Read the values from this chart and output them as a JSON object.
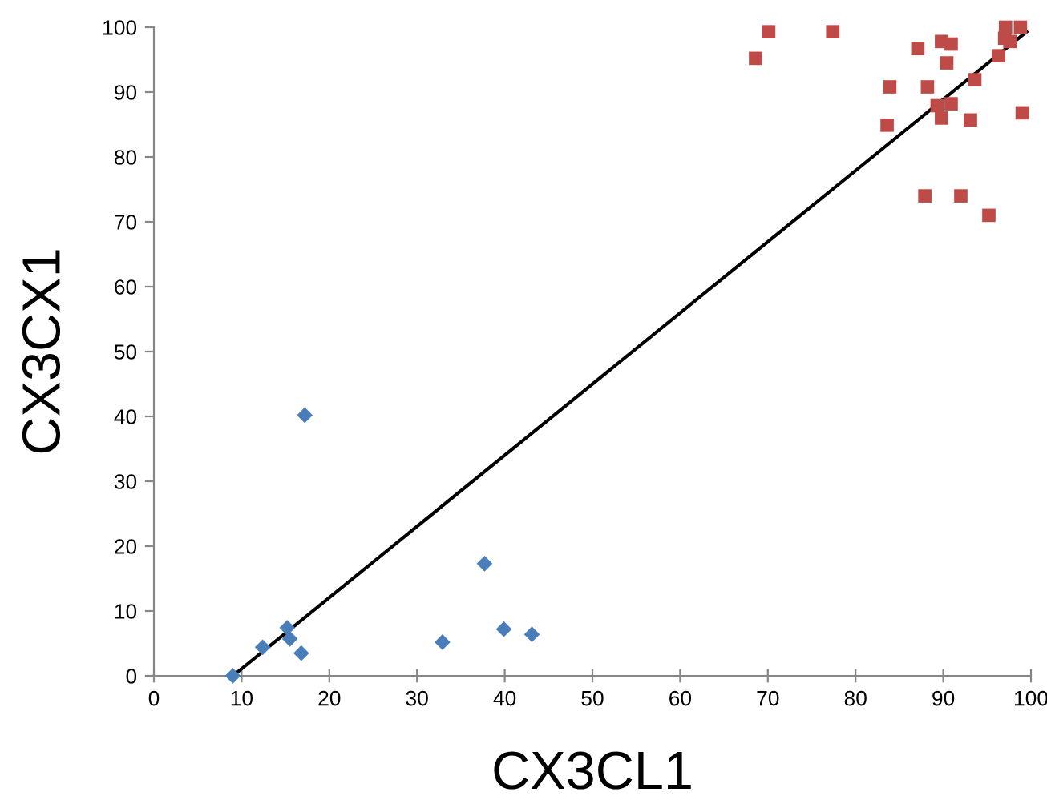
{
  "chart_data": {
    "type": "scatter",
    "xlabel": "CX3CL1",
    "ylabel": "CX3CX1",
    "xlim": [
      0,
      100
    ],
    "ylim": [
      0,
      100
    ],
    "xticks": [
      0,
      10,
      20,
      30,
      40,
      50,
      60,
      70,
      80,
      90,
      100
    ],
    "yticks": [
      0,
      10,
      20,
      30,
      40,
      50,
      60,
      70,
      80,
      90,
      100
    ],
    "grid": false,
    "legend": false,
    "series": [
      {
        "marker": "diamond",
        "color": "#4a7ebb",
        "x": [
          9.0,
          12.4,
          15.2,
          15.5,
          16.8,
          17.2,
          32.9,
          37.7,
          39.9,
          43.1
        ],
        "values": [
          0,
          4.4,
          7.4,
          5.7,
          3.5,
          40.2,
          5.2,
          17.3,
          7.2,
          6.4
        ]
      },
      {
        "marker": "square",
        "color": "#be4b48",
        "x": [
          70.1,
          77.4,
          68.6,
          87.1,
          89.8,
          90.9,
          90.4,
          97.1,
          98.8,
          97.6,
          97.0,
          96.3,
          93.6,
          83.9,
          88.2,
          89.3,
          90.9,
          89.8,
          93.1,
          99.0,
          83.6,
          87.9,
          92.0,
          95.2
        ],
        "values": [
          99.3,
          99.3,
          95.2,
          96.7,
          97.8,
          97.4,
          94.5,
          100,
          100,
          97.8,
          98.3,
          95.6,
          91.9,
          90.8,
          90.8,
          87.9,
          88.2,
          86.0,
          85.7,
          86.8,
          84.9,
          74.0,
          74.0,
          71.0
        ]
      },
      {
        "type": "line",
        "marker": "none",
        "line_style": "solid",
        "color": "#000000",
        "x": [
          9.0,
          99.5
        ],
        "values": [
          0,
          99.3
        ]
      }
    ]
  }
}
